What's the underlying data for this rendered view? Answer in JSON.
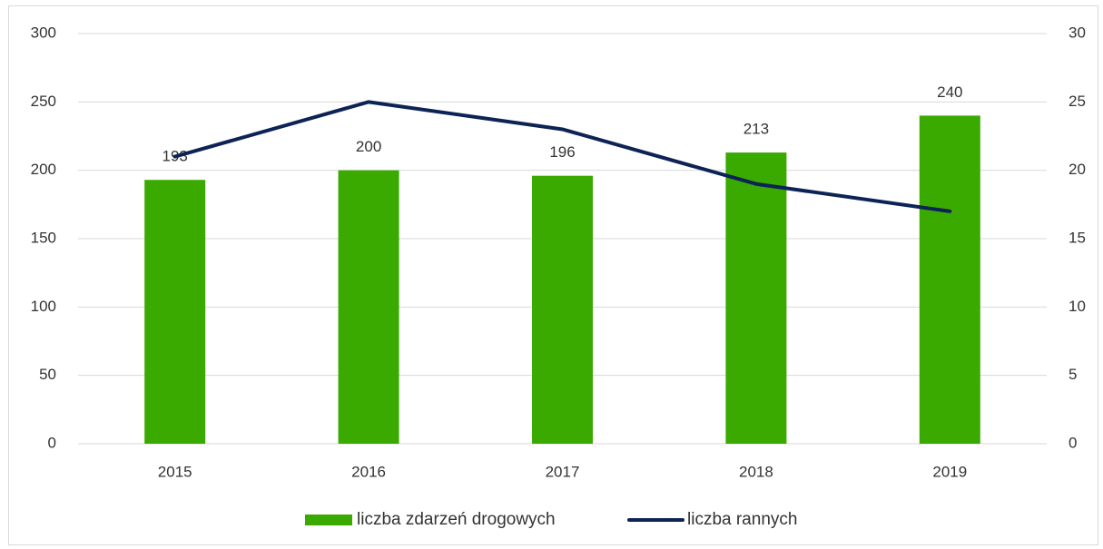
{
  "chart_data": {
    "type": "bar",
    "categories": [
      "2015",
      "2016",
      "2017",
      "2018",
      "2019"
    ],
    "series": [
      {
        "name": "liczba zdarzeń drogowych",
        "color": "#3aaa00",
        "values": [
          193,
          200,
          196,
          213,
          240
        ]
      },
      {
        "name": "liczba rannych",
        "color": "#0d2356",
        "axis": "y2",
        "type": "line",
        "values": [
          21,
          25,
          23,
          19,
          17
        ]
      }
    ],
    "ylim": [
      0,
      300
    ],
    "yticks": [
      0,
      50,
      100,
      150,
      200,
      250,
      300
    ],
    "y2lim": [
      0,
      30
    ],
    "y2ticks": [
      0,
      5,
      10,
      15,
      20,
      25,
      30
    ],
    "grid": true,
    "legend": "bottom"
  }
}
